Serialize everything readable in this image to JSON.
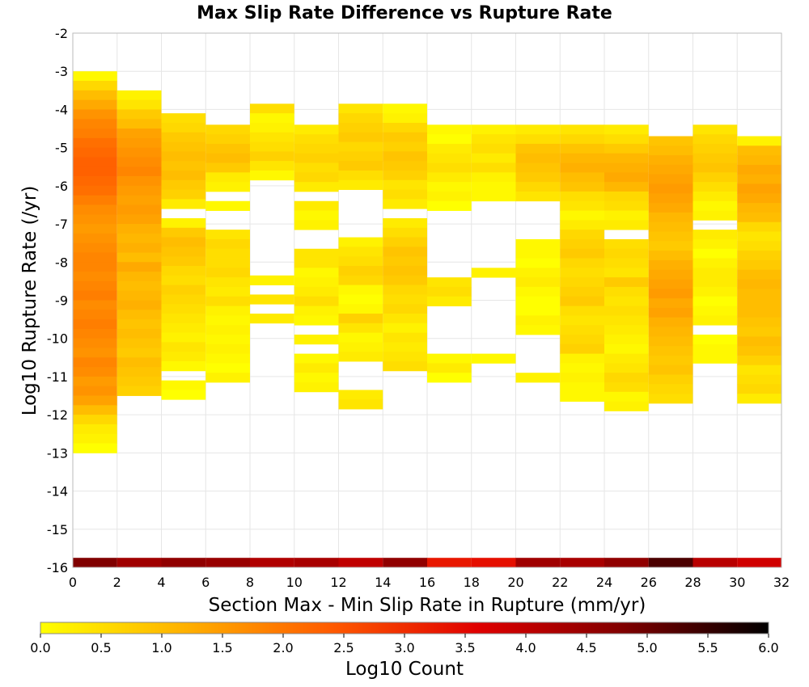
{
  "chart_data": {
    "type": "heatmap",
    "title": "Max Slip Rate Difference vs Rupture Rate",
    "xlabel": "Section Max - Min Slip Rate in Rupture (mm/yr)",
    "ylabel": "Log10 Rupture Rate (/yr)",
    "xlim": [
      0,
      32
    ],
    "ylim": [
      -16,
      -2
    ],
    "x_ticks": [
      "0",
      "2",
      "4",
      "6",
      "8",
      "10",
      "12",
      "14",
      "16",
      "18",
      "20",
      "22",
      "24",
      "26",
      "28",
      "30",
      "32"
    ],
    "y_ticks": [
      "-2",
      "-3",
      "-4",
      "-5",
      "-6",
      "-7",
      "-8",
      "-9",
      "-10",
      "-11",
      "-12",
      "-13",
      "-14",
      "-15",
      "-16"
    ],
    "x_bin_width": 2,
    "y_bin_height": 0.25,
    "grid": true,
    "colorbar": {
      "label": "Log10 Count",
      "min": 0.0,
      "max": 6.0,
      "ticks": [
        "0.0",
        "0.5",
        "1.0",
        "1.5",
        "2.0",
        "2.5",
        "3.0",
        "3.5",
        "4.0",
        "4.5",
        "5.0",
        "5.5",
        "6.0"
      ],
      "colors": [
        "#ffff00",
        "#ffb000",
        "#ff5a00",
        "#e00000",
        "#800000",
        "#000000"
      ]
    },
    "columns": [
      {
        "x": 0,
        "top": -3.0,
        "values": [
          0.1,
          0.6,
          1.0,
          1.3,
          1.6,
          1.8,
          1.9,
          2.1,
          2.2,
          2.3,
          2.3,
          2.2,
          2.1,
          1.9,
          1.7,
          1.6,
          1.5,
          1.6,
          1.7,
          1.8,
          1.8,
          1.7,
          1.8,
          1.9,
          1.7,
          1.8,
          1.9,
          1.8,
          1.7,
          1.6,
          1.8,
          1.7,
          1.5,
          1.6,
          1.4,
          1.0,
          0.6,
          0.3,
          0.2,
          0.0
        ],
        "bottom_value": 4.8
      },
      {
        "x": 2,
        "top": -3.5,
        "values": [
          0.2,
          0.4,
          0.8,
          1.0,
          1.4,
          1.5,
          1.6,
          1.7,
          1.8,
          1.6,
          1.5,
          1.4,
          1.5,
          1.4,
          1.2,
          1.1,
          1.2,
          1.0,
          1.3,
          1.1,
          1.0,
          1.1,
          1.2,
          1.0,
          0.9,
          1.0,
          0.9,
          0.8,
          1.0,
          0.9,
          0.8,
          0.7
        ],
        "bottom_value": 4.4
      },
      {
        "x": 4,
        "top": -4.1,
        "values": [
          0.5,
          0.6,
          0.8,
          0.9,
          1.0,
          0.9,
          1.0,
          0.8,
          0.7,
          0.3,
          -1,
          0.2,
          0.8,
          1.0,
          0.9,
          0.8,
          0.6,
          0.5,
          0.7,
          0.6,
          0.5,
          0.4,
          0.3,
          0.2,
          0.4,
          0.3,
          0.1,
          -1,
          0.1,
          0.0
        ],
        "bottom_value": 4.6
      },
      {
        "x": 6,
        "top": -4.4,
        "values": [
          0.6,
          0.7,
          0.9,
          1.0,
          0.8,
          0.3,
          0.2,
          -1,
          0.1,
          -1,
          -1,
          0.4,
          0.6,
          0.5,
          0.5,
          0.6,
          0.4,
          0.3,
          0.5,
          0.2,
          0.1,
          0.2,
          0.1,
          0.2,
          0.1,
          0.0,
          0.2
        ],
        "bottom_value": 4.5
      },
      {
        "x": 8,
        "top": -3.85,
        "values": [
          0.5,
          0.1,
          0.2,
          0.4,
          0.5,
          0.7,
          0.4,
          0.1,
          -1,
          -1,
          -1,
          -1,
          -1,
          -1,
          -1,
          -1,
          -1,
          -1,
          0.2,
          -1,
          0.4,
          -1,
          0.3
        ],
        "bottom_value": 4.2
      },
      {
        "x": 10,
        "top": -4.4,
        "values": [
          0.3,
          0.5,
          0.6,
          0.7,
          0.5,
          0.6,
          0.3,
          -1,
          0.3,
          0.1,
          0.2,
          -1,
          -1,
          0.4,
          0.4,
          0.1,
          0.2,
          0.3,
          0.5,
          0.2,
          0.1,
          -1,
          0.2,
          -1,
          0.1,
          0.3,
          0.1,
          0.2
        ],
        "bottom_value": 4.3
      },
      {
        "x": 12,
        "top": -3.85,
        "values": [
          0.4,
          0.6,
          0.7,
          0.8,
          0.6,
          0.7,
          0.8,
          0.5,
          0.3,
          -1,
          -1,
          -1,
          -1,
          -1,
          0.2,
          0.4,
          0.5,
          0.7,
          0.6,
          0.1,
          0.0,
          0.1,
          0.7,
          0.4,
          0.1,
          0.2,
          0.3,
          -1,
          -1,
          -1,
          0.3,
          0.4
        ],
        "bottom_value": 4.0
      },
      {
        "x": 14,
        "top": -3.85,
        "values": [
          0.1,
          0.2,
          0.6,
          0.8,
          0.7,
          0.9,
          0.8,
          0.7,
          0.4,
          0.5,
          0.3,
          -1,
          0.3,
          0.5,
          0.7,
          0.9,
          0.8,
          0.9,
          0.8,
          0.6,
          0.5,
          0.6,
          0.4,
          0.2,
          0.4,
          0.3,
          0.4,
          0.5
        ],
        "bottom_value": 4.6
      },
      {
        "x": 16,
        "top": -4.4,
        "values": [
          0.1,
          0.0,
          0.3,
          0.4,
          0.5,
          0.3,
          0.1,
          0.2,
          0.0,
          -1,
          -1,
          -1,
          -1,
          -1,
          -1,
          -1,
          0.4,
          0.5,
          0.3,
          -1,
          -1,
          -1,
          -1,
          -1,
          0.1,
          0.3,
          0.0
        ],
        "bottom_value": 3.3
      },
      {
        "x": 18,
        "top": -4.4,
        "values": [
          0.2,
          0.4,
          0.5,
          0.3,
          0.5,
          0.2,
          0.1,
          0.1,
          -1,
          -1,
          -1,
          -1,
          -1,
          -1,
          -1,
          0.2,
          -1,
          -1,
          -1,
          -1,
          -1,
          -1,
          -1,
          -1,
          0.1
        ],
        "bottom_value": 3.4
      },
      {
        "x": 20,
        "top": -4.4,
        "values": [
          0.3,
          0.5,
          0.9,
          1.0,
          0.9,
          0.8,
          0.6,
          0.4,
          -1,
          -1,
          -1,
          -1,
          0.1,
          0.1,
          0.0,
          0.2,
          0.3,
          0.1,
          0.0,
          0.0,
          0.2,
          0.1,
          -1,
          -1,
          -1,
          -1,
          0.2
        ],
        "bottom_value": 4.4
      },
      {
        "x": 22,
        "top": -4.4,
        "values": [
          0.4,
          0.6,
          0.9,
          1.1,
          1.2,
          1.0,
          0.9,
          0.5,
          0.4,
          0.1,
          0.3,
          0.6,
          0.7,
          0.8,
          0.6,
          0.5,
          0.6,
          0.7,
          0.8,
          0.5,
          0.4,
          0.5,
          0.6,
          0.7,
          0.2,
          0.1,
          0.2,
          0.1,
          0.1
        ],
        "bottom_value": 4.3
      },
      {
        "x": 24,
        "top": -4.4,
        "values": [
          0.3,
          0.5,
          0.8,
          1.1,
          1.2,
          1.3,
          1.1,
          0.6,
          0.5,
          0.2,
          0.3,
          -1,
          0.5,
          0.6,
          0.5,
          0.4,
          0.8,
          0.5,
          0.4,
          0.5,
          0.4,
          0.3,
          0.2,
          0.1,
          0.3,
          0.4,
          0.6,
          0.5,
          0.1,
          0.2
        ],
        "bottom_value": 4.6
      },
      {
        "x": 26,
        "top": -4.7,
        "values": [
          0.9,
          1.0,
          1.2,
          1.3,
          1.4,
          1.5,
          1.4,
          1.3,
          1.1,
          1.0,
          0.9,
          0.8,
          1.0,
          1.2,
          1.3,
          1.4,
          1.5,
          1.3,
          1.4,
          1.2,
          1.1,
          1.0,
          0.9,
          0.8,
          0.9,
          0.7,
          0.6,
          0.5
        ],
        "bottom_value": 5.3
      },
      {
        "x": 28,
        "top": -4.4,
        "values": [
          0.4,
          0.6,
          0.7,
          0.8,
          0.9,
          0.7,
          0.5,
          0.3,
          0.1,
          0.2,
          -1,
          0.3,
          0.2,
          0.0,
          0.2,
          0.3,
          0.3,
          0.2,
          0.0,
          0.1,
          0.2,
          -1,
          0.0,
          0.1,
          0.1
        ],
        "bottom_value": 4.1
      },
      {
        "x": 30,
        "top": -4.7,
        "values": [
          0.2,
          1.0,
          1.1,
          1.3,
          1.2,
          1.4,
          1.3,
          1.1,
          1.0,
          0.6,
          0.4,
          0.5,
          0.7,
          0.8,
          1.0,
          1.1,
          1.0,
          1.0,
          1.0,
          0.9,
          0.8,
          1.0,
          0.9,
          0.7,
          0.4,
          0.5,
          0.6,
          0.3
        ],
        "bottom_value": 3.8
      }
    ]
  }
}
